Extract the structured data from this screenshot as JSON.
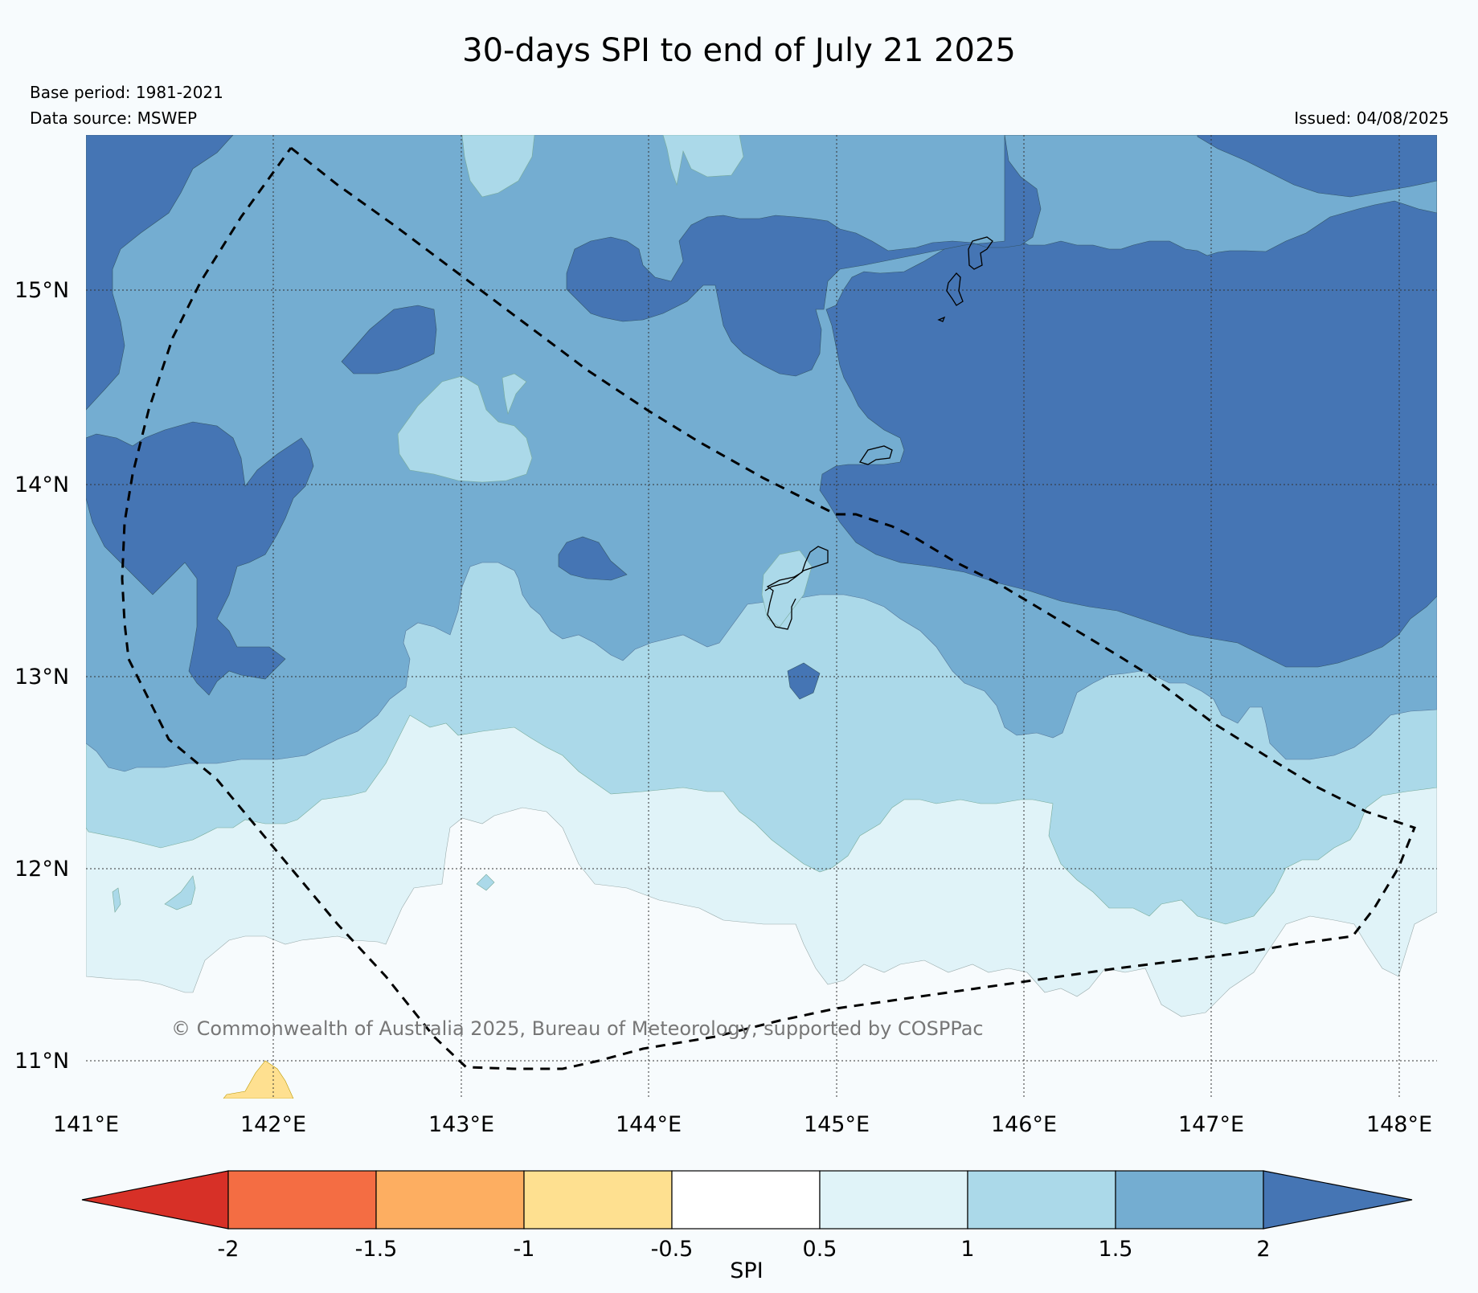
{
  "title": "30-days SPI to end of July 21 2025",
  "base_period": "Base period: 1981-2021",
  "data_source": "Data source: MSWEP",
  "issued": "Issued: 04/08/2025",
  "copyright": "© Commonwealth of Australia 2025, Bureau of Meteorology, supported by COSPPac",
  "map": {
    "lon_range": [
      141.0,
      148.2
    ],
    "lat_range": [
      10.8,
      15.82
    ],
    "lat_ticks": [
      "15°N",
      "14°N",
      "13°N",
      "12°N",
      "11°N"
    ],
    "lon_ticks": [
      "141°E",
      "142°E",
      "143°E",
      "144°E",
      "145°E",
      "146°E",
      "147°E",
      "148°E"
    ],
    "gridlines": "dotted"
  },
  "colorbar": {
    "label": "SPI",
    "ticks": [
      "-2",
      "-1.5",
      "-1",
      "-0.5",
      "0.5",
      "1",
      "1.5",
      "2"
    ],
    "colors": {
      "below_-2": "#d73027",
      "-2_to_-1.5": "#f46d43",
      "-1.5_to_-1": "#fdae61",
      "-1_to_-0.5": "#fee090",
      "-0.5_to_0.5": "#ffffff",
      "0.5_to_1": "#e0f3f8",
      "1_to_1.5": "#abd9e9",
      "1.5_to_2": "#74add1",
      "above_2": "#4575b4"
    }
  },
  "colors": {
    "background": "#f7fbfd",
    "spi_dark_blue": "#4575b4",
    "spi_mid_blue": "#74add1",
    "spi_light_blue": "#abd9e9",
    "spi_pale_blue": "#e0f3f8",
    "spi_near_normal": "#f7fbfd",
    "spi_dry": "#fee090"
  }
}
